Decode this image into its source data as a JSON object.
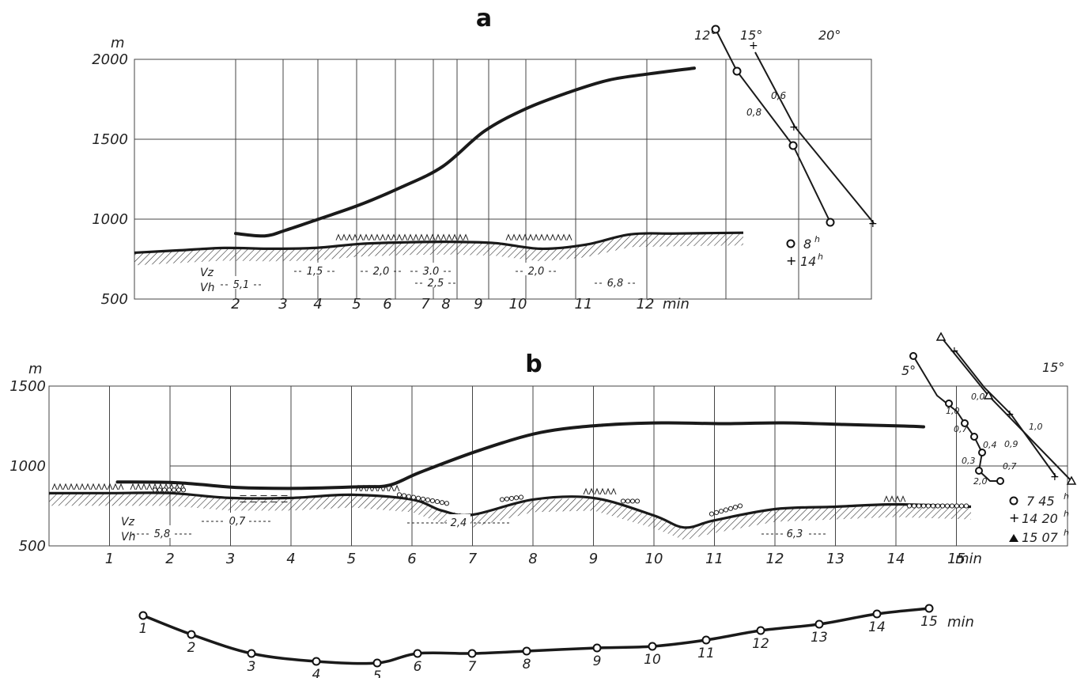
{
  "chart_data": [
    {
      "panel": "a",
      "type": "line",
      "y_unit": "m",
      "x_unit": "min",
      "yticks": [
        500,
        1000,
        1500,
        2000
      ],
      "ylim": [
        500,
        2000
      ],
      "minute_ticks": [
        2,
        3,
        4,
        5,
        6,
        7,
        8,
        9,
        10,
        11,
        12
      ],
      "flight_profile": {
        "x": [
          2,
          2.7,
          3.2,
          4,
          5,
          6,
          7,
          8,
          9,
          10,
          11,
          12,
          13.5
        ],
        "y": [
          910,
          895,
          930,
          1000,
          1090,
          1200,
          1330,
          1550,
          1690,
          1790,
          1870,
          1910,
          1945
        ]
      },
      "terrain": {
        "x": [
          0,
          1,
          2,
          3,
          4,
          5,
          6,
          7,
          8,
          9,
          10,
          11,
          12,
          13.5
        ],
        "y": [
          790,
          805,
          820,
          815,
          820,
          845,
          855,
          858,
          850,
          815,
          840,
          905,
          910,
          915
        ]
      },
      "speed_labels": [
        {
          "row": "V_h",
          "value": "5,1"
        },
        {
          "row": "V_z",
          "value": "1,5"
        },
        {
          "row": "V_z",
          "value": "2,0"
        },
        {
          "row": "V_z",
          "value": "3,0"
        },
        {
          "row": "V_h",
          "value": "2,5"
        },
        {
          "row": "V_z",
          "value": "2,0"
        },
        {
          "row": "V_h",
          "value": "6,8"
        }
      ],
      "row_labels": {
        "vz": "Vz",
        "vh": "Vh"
      },
      "temperature_ticks": [
        "12°",
        "15°",
        "20°"
      ],
      "temperature_soundings": [
        {
          "label": "8",
          "marker": "circle",
          "gradient_labels": [
            "0,8"
          ]
        },
        {
          "label": "14",
          "marker": "plus",
          "gradient_labels": [
            "0,6"
          ]
        }
      ]
    },
    {
      "panel": "b",
      "type": "line",
      "y_unit": "m",
      "x_unit": "min",
      "yticks": [
        500,
        1000,
        1500
      ],
      "ylim": [
        500,
        1500
      ],
      "minute_ticks": [
        1,
        2,
        3,
        4,
        5,
        6,
        7,
        8,
        9,
        10,
        11,
        12,
        13,
        14,
        15
      ],
      "flight_profile": {
        "x": [
          1,
          2,
          3,
          4,
          5,
          5.5,
          6,
          7,
          8,
          9,
          10,
          11,
          12,
          13,
          14,
          14.6
        ],
        "y": [
          900,
          895,
          865,
          860,
          870,
          880,
          960,
          1100,
          1210,
          1255,
          1270,
          1265,
          1270,
          1260,
          1250,
          1245
        ]
      },
      "terrain": {
        "x": [
          0,
          1,
          2,
          3,
          4,
          5,
          6,
          6.5,
          7,
          8,
          9,
          10,
          10.5,
          11,
          12,
          13,
          14,
          15
        ],
        "y": [
          830,
          830,
          830,
          800,
          800,
          820,
          790,
          720,
          695,
          790,
          800,
          690,
          615,
          660,
          730,
          745,
          760,
          745
        ]
      },
      "inversion_dashed_segment": {
        "x": [
          3,
          4
        ],
        "y": 775
      },
      "speed_labels": [
        {
          "row": "V_h",
          "value": "5,8"
        },
        {
          "row": "V_z",
          "value": "0,7"
        },
        {
          "row": "V_z",
          "value": "2,4"
        },
        {
          "row": "V_h",
          "value": "6,3"
        }
      ],
      "row_labels": {
        "vz": "Vz",
        "vh": "Vh"
      },
      "temperature_ticks": [
        "5°",
        "15°"
      ],
      "temperature_soundings": [
        {
          "label": "7 45",
          "marker": "circle",
          "gradient_labels": [
            "1,0",
            "0,7",
            "0,4",
            "0,3",
            "2,0"
          ]
        },
        {
          "label": "14 20",
          "marker": "plus",
          "gradient_labels": [
            "0,9",
            "1,0"
          ]
        },
        {
          "label": "15 07",
          "marker": "triangle",
          "gradient_labels": [
            "0,0",
            "0,7"
          ]
        }
      ]
    },
    {
      "panel": "time-track",
      "type": "line",
      "x_unit": "min",
      "points": [
        1,
        2,
        3,
        4,
        5,
        6,
        7,
        8,
        9,
        10,
        11,
        12,
        13,
        14,
        15
      ]
    }
  ],
  "text": {
    "panel_a_title": "a",
    "panel_b_title": "b",
    "unit_m": "m",
    "unit_min": "min",
    "hour_suffix": "h"
  }
}
